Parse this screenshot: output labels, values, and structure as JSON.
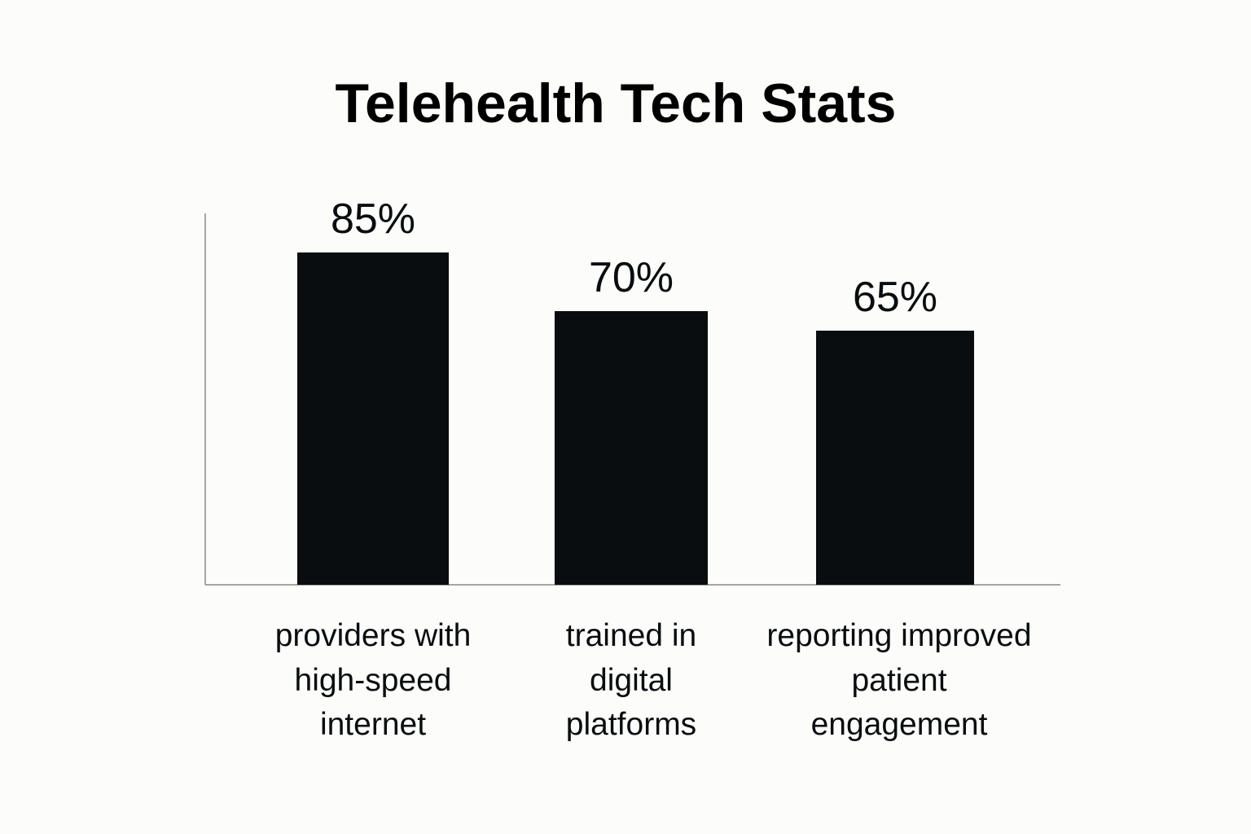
{
  "colors": {
    "background": "#fcfcfa",
    "bar": "#0a0d0f",
    "axis": "#8a8a8a",
    "text": "#0a0d0f"
  },
  "chart_data": {
    "type": "bar",
    "title": "Telehealth Tech Stats",
    "xlabel": "",
    "ylabel": "",
    "grid": false,
    "ylim": [
      0,
      100
    ],
    "categories": [
      [
        "providers with",
        "high-speed",
        "internet"
      ],
      [
        "trained in",
        "digital",
        "platforms"
      ],
      [
        "reporting improved",
        "patient",
        "engagement"
      ]
    ],
    "values": [
      85,
      70,
      65
    ],
    "value_labels": [
      "85%",
      "70%",
      "65%"
    ]
  }
}
